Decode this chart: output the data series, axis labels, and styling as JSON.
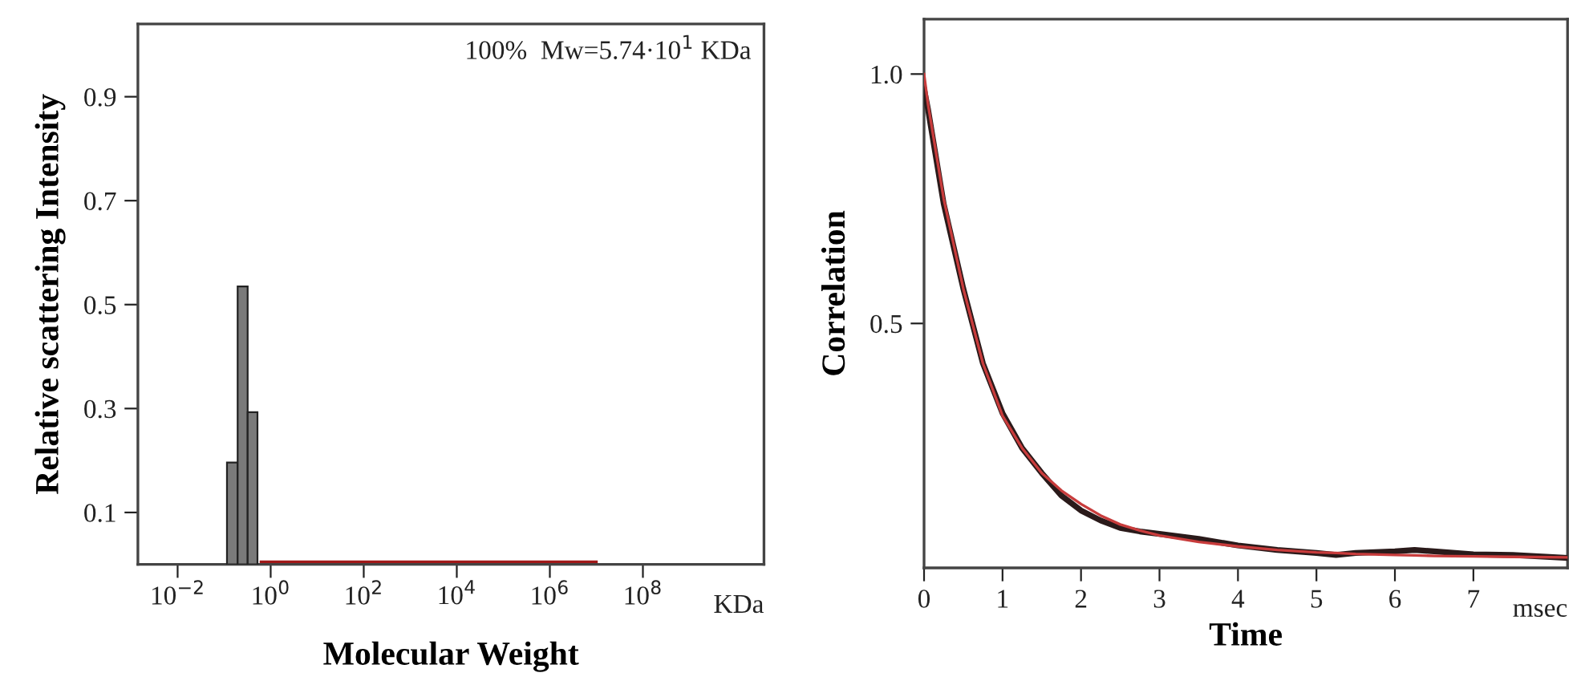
{
  "chart_data": [
    {
      "type": "histogram",
      "xlabel": "Molecular Weight",
      "ylabel": "Relative scattering Intensity",
      "log": "x",
      "bins": [
        0.115,
        0.195,
        0.32,
        0.52
      ],
      "values": [
        0.196,
        0.535,
        0.293
      ],
      "color": "#7a7a7a",
      "series": [
        {
          "type": "line",
          "x": [
            0.62,
            10000000
          ],
          "values": [
            0.005,
            0.005
          ],
          "color": "#a01818"
        }
      ],
      "xlim": [
        0.0014,
        40000000000
      ],
      "ylim": [
        0,
        1.04
      ],
      "xticks": [
        {
          "value": 0.01,
          "label": "10$^{−2}$"
        },
        {
          "value": 1,
          "label": "10$^{0}$"
        },
        {
          "value": 100,
          "label": "10$^{2}$"
        },
        {
          "value": 10000,
          "label": "10$^{4}$"
        },
        {
          "value": 1000000,
          "label": "10$^{6}$"
        },
        {
          "value": 100000000,
          "label": "10$^{8}$"
        }
      ],
      "yticks": [
        0.1,
        0.3,
        0.5,
        0.7,
        0.9
      ],
      "annotations": [
        "100%  Mw=5.74·10$^{1}$ KDa",
        "KDa"
      ],
      "grid": false,
      "legend": false
    },
    {
      "type": "line",
      "xlabel": "Time",
      "ylabel": "Correlation",
      "x": [
        0,
        0.05,
        0.25,
        0.5,
        0.75,
        1,
        1.25,
        1.5,
        1.75,
        2,
        2.25,
        2.5,
        2.75,
        3,
        3.5,
        4,
        4.5,
        5,
        5.25,
        5.5,
        6,
        6.25,
        6.5,
        7,
        7.5,
        8.2
      ],
      "series": [
        {
          "color": "#2a1a1a",
          "values": [
            0.97,
            0.93,
            0.74,
            0.57,
            0.42,
            0.32,
            0.25,
            0.2,
            0.155,
            0.125,
            0.105,
            0.09,
            0.083,
            0.078,
            0.068,
            0.055,
            0.046,
            0.04,
            0.036,
            0.04,
            0.043,
            0.046,
            0.043,
            0.037,
            0.036,
            0.03
          ]
        },
        {
          "color": "#c83c3c",
          "values": [
            1.0,
            0.94,
            0.75,
            0.57,
            0.42,
            0.315,
            0.25,
            0.2,
            0.165,
            0.138,
            0.115,
            0.097,
            0.085,
            0.075,
            0.062,
            0.053,
            0.046,
            0.041,
            0.04,
            0.038,
            0.036,
            0.035,
            0.034,
            0.033,
            0.032,
            0.031
          ]
        }
      ],
      "xlim": [
        0,
        8.2
      ],
      "ylim": [
        0.01,
        1.11
      ],
      "xticks": [
        0,
        1,
        2,
        3,
        4,
        5,
        6,
        7
      ],
      "yticks": [
        {
          "value": 0.5,
          "label": "0.5"
        },
        {
          "value": 1.0,
          "label": "1.0"
        }
      ],
      "annotations": [
        "msec"
      ],
      "grid": false,
      "legend": false
    }
  ]
}
